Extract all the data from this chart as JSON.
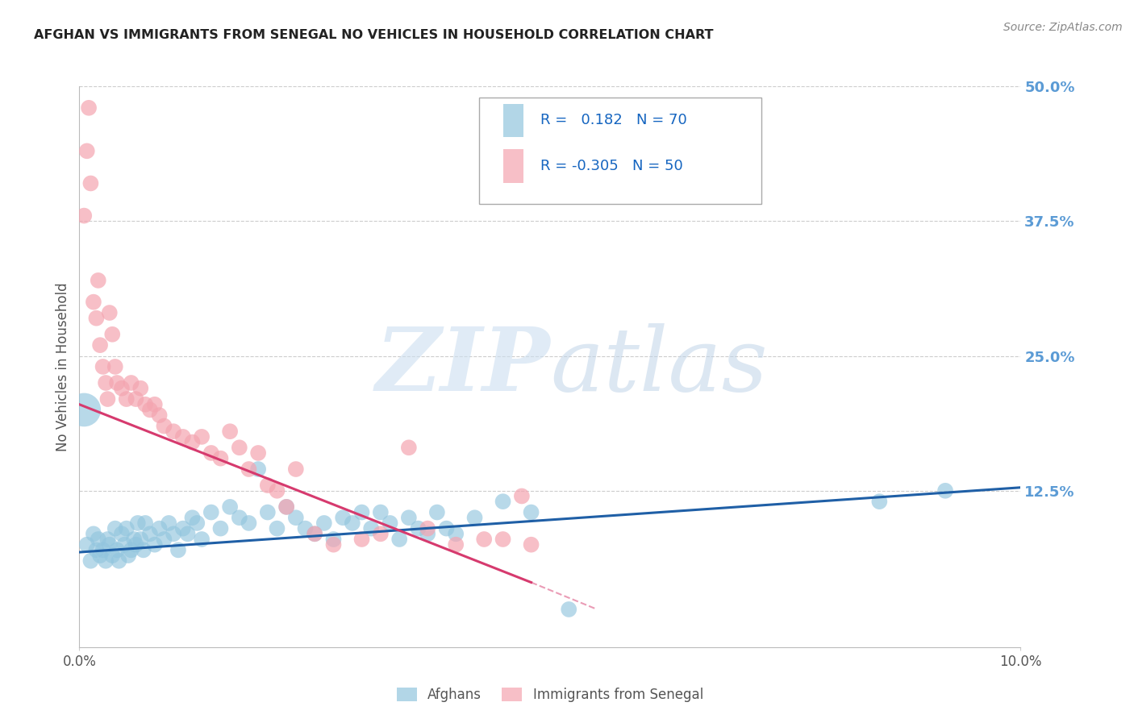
{
  "title": "AFGHAN VS IMMIGRANTS FROM SENEGAL NO VEHICLES IN HOUSEHOLD CORRELATION CHART",
  "source": "Source: ZipAtlas.com",
  "ylabel": "No Vehicles in Household",
  "xmin": 0.0,
  "xmax": 10.0,
  "ymin": -2.0,
  "ymax": 50.0,
  "ytick_positions": [
    0,
    12.5,
    25.0,
    37.5,
    50.0
  ],
  "ytick_labels": [
    "",
    "12.5%",
    "25.0%",
    "37.5%",
    "50.0%"
  ],
  "blue_R": 0.182,
  "blue_N": 70,
  "pink_R": -0.305,
  "pink_N": 50,
  "blue_color": "#92c5de",
  "pink_color": "#f4a4b0",
  "blue_line_color": "#1f5fa6",
  "pink_line_color": "#d63a6e",
  "legend_label_blue": "Afghans",
  "legend_label_pink": "Immigrants from Senegal",
  "blue_scatter_x": [
    0.08,
    0.12,
    0.15,
    0.18,
    0.2,
    0.22,
    0.25,
    0.28,
    0.3,
    0.32,
    0.35,
    0.38,
    0.4,
    0.42,
    0.45,
    0.48,
    0.5,
    0.52,
    0.55,
    0.58,
    0.6,
    0.62,
    0.65,
    0.68,
    0.7,
    0.75,
    0.8,
    0.85,
    0.9,
    0.95,
    1.0,
    1.05,
    1.1,
    1.15,
    1.2,
    1.25,
    1.3,
    1.4,
    1.5,
    1.6,
    1.7,
    1.8,
    1.9,
    2.0,
    2.1,
    2.2,
    2.3,
    2.4,
    2.5,
    2.6,
    2.7,
    2.8,
    2.9,
    3.0,
    3.1,
    3.2,
    3.3,
    3.4,
    3.5,
    3.6,
    3.7,
    3.8,
    3.9,
    4.0,
    4.2,
    4.5,
    4.8,
    5.2,
    8.5,
    9.2
  ],
  "blue_scatter_y": [
    7.5,
    6.0,
    8.5,
    7.0,
    8.0,
    6.5,
    7.0,
    6.0,
    8.0,
    7.5,
    6.5,
    9.0,
    7.0,
    6.0,
    8.5,
    7.5,
    9.0,
    6.5,
    7.0,
    8.0,
    7.5,
    9.5,
    8.0,
    7.0,
    9.5,
    8.5,
    7.5,
    9.0,
    8.0,
    9.5,
    8.5,
    7.0,
    9.0,
    8.5,
    10.0,
    9.5,
    8.0,
    10.5,
    9.0,
    11.0,
    10.0,
    9.5,
    14.5,
    10.5,
    9.0,
    11.0,
    10.0,
    9.0,
    8.5,
    9.5,
    8.0,
    10.0,
    9.5,
    10.5,
    9.0,
    10.5,
    9.5,
    8.0,
    10.0,
    9.0,
    8.5,
    10.5,
    9.0,
    8.5,
    10.0,
    11.5,
    10.5,
    1.5,
    11.5,
    12.5
  ],
  "pink_scatter_x": [
    0.05,
    0.08,
    0.1,
    0.12,
    0.15,
    0.18,
    0.2,
    0.22,
    0.25,
    0.28,
    0.3,
    0.32,
    0.35,
    0.38,
    0.4,
    0.45,
    0.5,
    0.55,
    0.6,
    0.65,
    0.7,
    0.75,
    0.8,
    0.85,
    0.9,
    1.0,
    1.1,
    1.2,
    1.3,
    1.4,
    1.5,
    1.6,
    1.7,
    1.8,
    1.9,
    2.0,
    2.1,
    2.2,
    2.3,
    2.5,
    2.7,
    3.0,
    3.2,
    3.5,
    3.7,
    4.0,
    4.3,
    4.5,
    4.7,
    4.8
  ],
  "pink_scatter_y": [
    38.0,
    44.0,
    48.0,
    41.0,
    30.0,
    28.5,
    32.0,
    26.0,
    24.0,
    22.5,
    21.0,
    29.0,
    27.0,
    24.0,
    22.5,
    22.0,
    21.0,
    22.5,
    21.0,
    22.0,
    20.5,
    20.0,
    20.5,
    19.5,
    18.5,
    18.0,
    17.5,
    17.0,
    17.5,
    16.0,
    15.5,
    18.0,
    16.5,
    14.5,
    16.0,
    13.0,
    12.5,
    11.0,
    14.5,
    8.5,
    7.5,
    8.0,
    8.5,
    16.5,
    9.0,
    7.5,
    8.0,
    8.0,
    12.0,
    7.5
  ],
  "big_blue_dot_x": 0.05,
  "big_blue_dot_y": 20.0,
  "blue_line_x0": 0.0,
  "blue_line_y0": 6.8,
  "blue_line_x1": 10.0,
  "blue_line_y1": 12.8,
  "pink_line_x0": 0.0,
  "pink_line_y0": 20.5,
  "pink_line_x1": 4.8,
  "pink_line_y1": 4.0,
  "pink_dash_x1": 5.5,
  "pink_dash_y1": 1.5,
  "background_color": "#ffffff",
  "grid_color": "#cccccc",
  "title_color": "#222222",
  "right_label_color": "#5b9bd5",
  "legend_text_color": "#1565c0",
  "legend_box_color": "#aaaaaa"
}
